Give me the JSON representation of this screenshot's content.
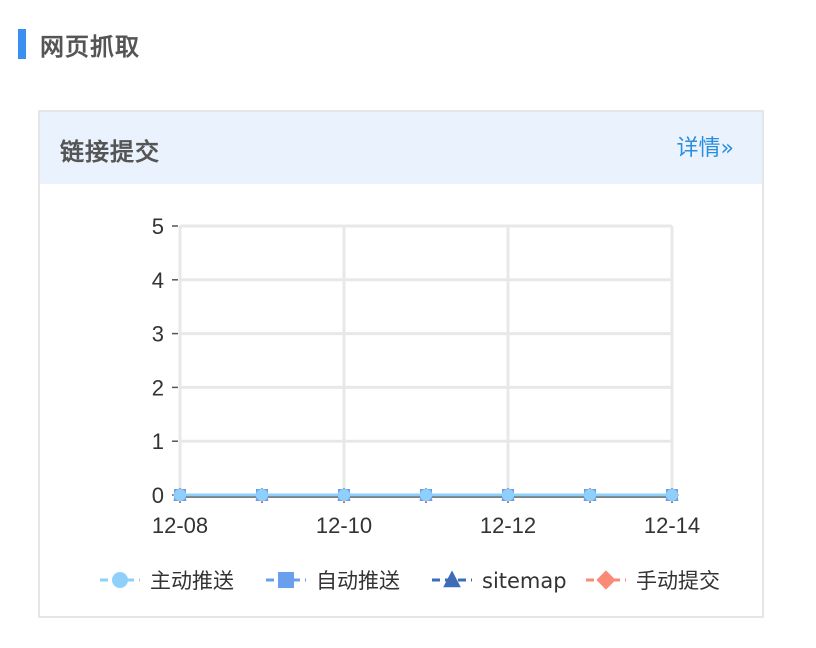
{
  "section": {
    "title": "网页抓取"
  },
  "card": {
    "title": "链接提交",
    "detail_link": "详情»"
  },
  "chart_data": {
    "type": "line",
    "title": "",
    "xlabel": "",
    "ylabel": "",
    "x": [
      "12-08",
      "12-09",
      "12-10",
      "12-11",
      "12-12",
      "12-13",
      "12-14"
    ],
    "x_tick_labels": [
      "12-08",
      "12-10",
      "12-12",
      "12-14"
    ],
    "ylim": [
      0,
      5
    ],
    "y_ticks": [
      0,
      1,
      2,
      3,
      4,
      5
    ],
    "grid": true,
    "legend_position": "bottom",
    "series": [
      {
        "name": "主动推送",
        "values": [
          0,
          0,
          0,
          0,
          0,
          0,
          0
        ],
        "color": "#8fd0fa",
        "marker": "circle"
      },
      {
        "name": "自动推送",
        "values": [
          0,
          0,
          0,
          0,
          0,
          0,
          0
        ],
        "color": "#6a9fee",
        "marker": "square"
      },
      {
        "name": "sitemap",
        "values": [
          0,
          0,
          0,
          0,
          0,
          0,
          0
        ],
        "color": "#3e6cb8",
        "marker": "triangle"
      },
      {
        "name": "手动提交",
        "values": [
          0,
          0,
          0,
          0,
          0,
          0,
          0
        ],
        "color": "#f98a75",
        "marker": "diamond"
      }
    ]
  }
}
